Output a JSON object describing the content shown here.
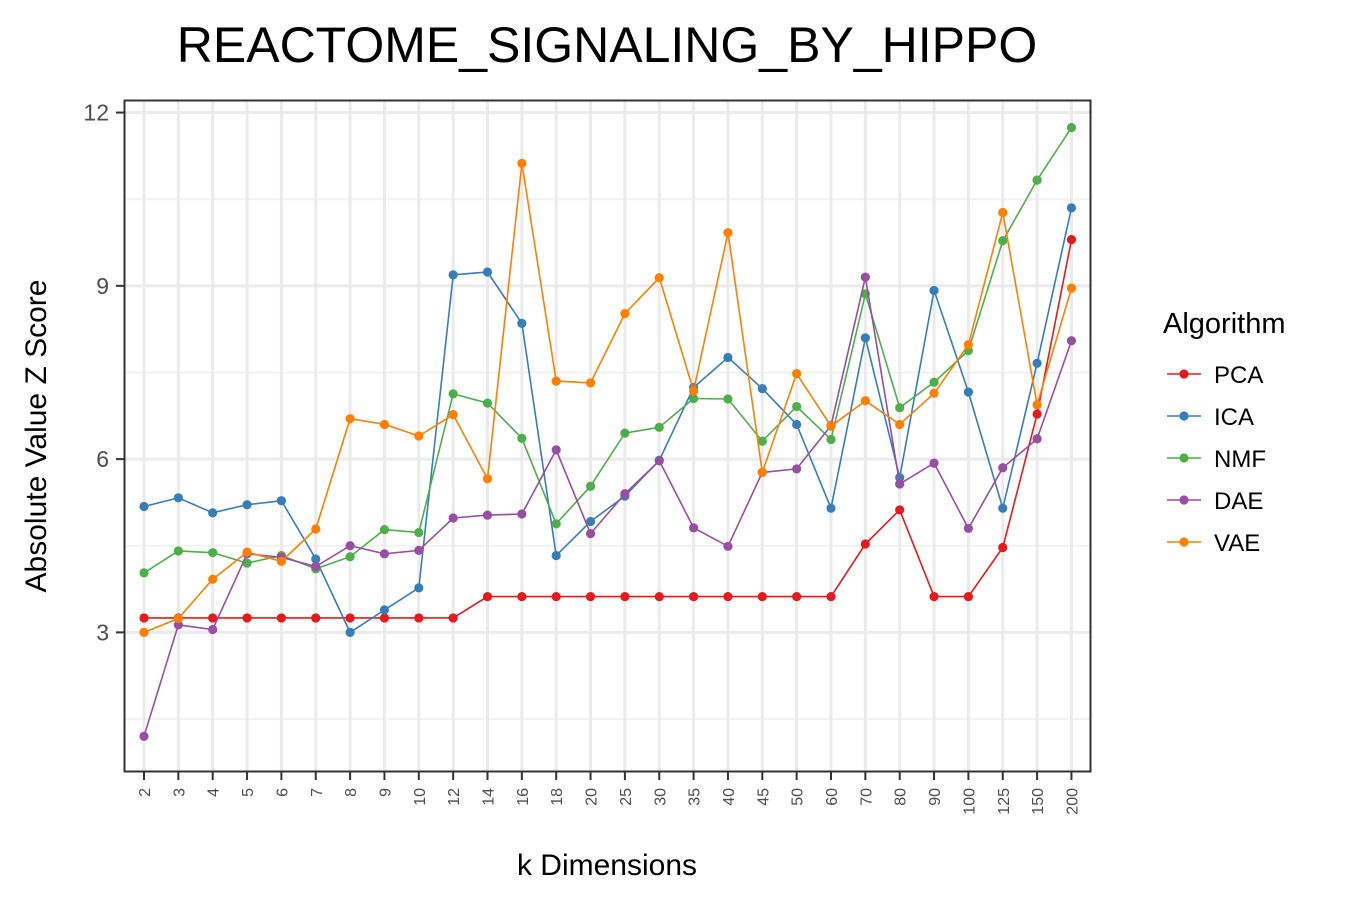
{
  "chart_data": {
    "type": "line",
    "title": "REACTOME_SIGNALING_BY_HIPPO",
    "xlabel": "k Dimensions",
    "ylabel": "Absolute Value Z Score",
    "categories": [
      "2",
      "3",
      "4",
      "5",
      "6",
      "7",
      "8",
      "9",
      "10",
      "12",
      "14",
      "16",
      "18",
      "20",
      "25",
      "30",
      "35",
      "40",
      "45",
      "50",
      "60",
      "70",
      "80",
      "90",
      "100",
      "125",
      "150",
      "200"
    ],
    "ylim": [
      0.6,
      12.2
    ],
    "yticks": [
      3,
      6,
      9,
      12
    ],
    "grid": true,
    "legend": {
      "title": "Algorithm",
      "position": "right"
    },
    "series": [
      {
        "name": "PCA",
        "color": "#E41A1C",
        "values": [
          3.25,
          3.25,
          3.25,
          3.25,
          3.25,
          3.25,
          3.25,
          3.25,
          3.25,
          3.25,
          3.62,
          3.62,
          3.62,
          3.62,
          3.62,
          3.62,
          3.62,
          3.62,
          3.62,
          3.62,
          3.62,
          4.53,
          5.12,
          3.62,
          3.62,
          4.47,
          6.78,
          9.8
        ]
      },
      {
        "name": "ICA",
        "color": "#377EB8",
        "values": [
          5.18,
          5.33,
          5.07,
          5.21,
          5.28,
          4.27,
          3.0,
          3.39,
          3.77,
          9.19,
          9.24,
          8.35,
          4.33,
          4.92,
          5.36,
          5.98,
          7.24,
          7.76,
          7.22,
          6.6,
          5.15,
          8.1,
          5.68,
          8.92,
          7.16,
          5.15,
          7.66,
          10.35
        ]
      },
      {
        "name": "NMF",
        "color": "#4DAF4A",
        "values": [
          4.03,
          4.41,
          4.38,
          4.2,
          4.33,
          4.1,
          4.31,
          4.78,
          4.73,
          7.13,
          6.97,
          6.36,
          4.88,
          5.53,
          6.45,
          6.55,
          7.05,
          7.04,
          6.31,
          6.91,
          6.34,
          8.86,
          6.89,
          7.33,
          7.88,
          9.78,
          10.83,
          11.74
        ]
      },
      {
        "name": "DAE",
        "color": "#984EA3",
        "values": [
          1.2,
          3.13,
          3.05,
          4.36,
          4.3,
          4.14,
          4.5,
          4.36,
          4.42,
          4.98,
          5.03,
          5.05,
          6.16,
          4.71,
          5.4,
          5.97,
          4.81,
          4.49,
          5.77,
          5.83,
          6.58,
          9.15,
          5.57,
          5.93,
          4.8,
          5.85,
          6.35,
          8.05
        ]
      },
      {
        "name": "VAE",
        "color": "#FF7F00",
        "values": [
          3.0,
          3.24,
          3.92,
          4.39,
          4.23,
          4.79,
          6.7,
          6.6,
          6.4,
          6.77,
          5.66,
          11.12,
          7.35,
          7.32,
          8.52,
          9.14,
          7.18,
          9.92,
          5.77,
          7.48,
          6.57,
          7.01,
          6.6,
          7.14,
          7.98,
          10.27,
          6.94,
          8.96
        ]
      }
    ]
  }
}
